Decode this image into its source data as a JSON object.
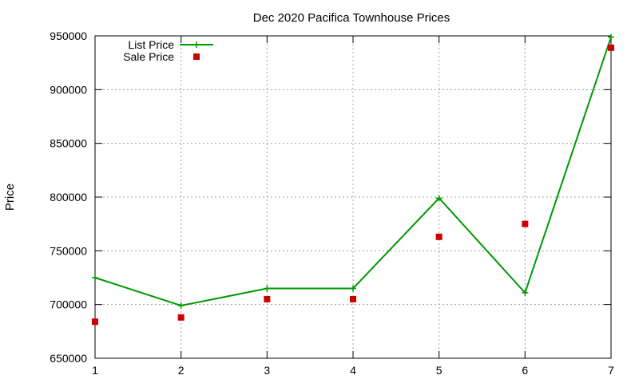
{
  "chart_data": {
    "type": "line",
    "title": "Dec 2020 Pacifica Townhouse Prices",
    "xlabel": "",
    "ylabel": "Price",
    "x": [
      1,
      2,
      3,
      4,
      5,
      6,
      7
    ],
    "xlim": [
      1,
      7
    ],
    "ylim": [
      650000,
      950000
    ],
    "xticks": [
      1,
      2,
      3,
      4,
      5,
      6,
      7
    ],
    "yticks": [
      650000,
      700000,
      750000,
      800000,
      850000,
      900000,
      950000
    ],
    "grid": true,
    "legend_position": "top-left",
    "series": [
      {
        "name": "List Price",
        "style": "line-with-plus-markers",
        "color": "#009900",
        "values": [
          725000,
          699000,
          715000,
          715000,
          799000,
          711000,
          949000
        ]
      },
      {
        "name": "Sale Price",
        "style": "square-points",
        "color": "#cc0000",
        "values": [
          684000,
          688000,
          705000,
          705000,
          763000,
          775000,
          939000
        ]
      }
    ]
  }
}
